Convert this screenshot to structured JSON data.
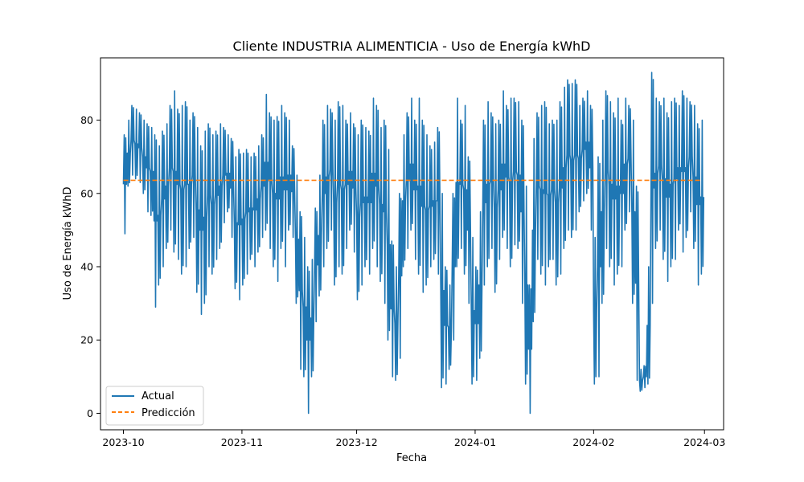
{
  "chart_data": {
    "type": "line",
    "title": "Cliente INDUSTRIA ALIMENTICIA - Uso de Energía kWhD",
    "xlabel": "Fecha",
    "ylabel": "Uso de Energía kWhD",
    "x_range": [
      "2023-10-01",
      "2024-02-29"
    ],
    "xlim": [
      "2023-09-25",
      "2024-03-06"
    ],
    "ylim": [
      -4.5,
      97
    ],
    "x_ticks": [
      "2023-10",
      "2023-11",
      "2023-12",
      "2024-01",
      "2024-02",
      "2024-03"
    ],
    "x_tick_dates": [
      "2023-10-01",
      "2023-11-01",
      "2023-12-01",
      "2024-01-01",
      "2024-02-01",
      "2024-03-01"
    ],
    "y_ticks": [
      0,
      20,
      40,
      60,
      80
    ],
    "legend_position": "lower-left",
    "grid": false,
    "series": [
      {
        "name": "Actual",
        "style": "solid",
        "color": "#1f77b4",
        "sampling": "daily, approximate envelope of the hourly signal",
        "points": [
          [
            "2023-10-01",
            49,
            76
          ],
          [
            "2023-10-02",
            62,
            80
          ],
          [
            "2023-10-03",
            65,
            84
          ],
          [
            "2023-10-04",
            64,
            83
          ],
          [
            "2023-10-05",
            63,
            82
          ],
          [
            "2023-10-06",
            60,
            80
          ],
          [
            "2023-10-07",
            55,
            79
          ],
          [
            "2023-10-08",
            54,
            78
          ],
          [
            "2023-10-09",
            29,
            76
          ],
          [
            "2023-10-10",
            35,
            73
          ],
          [
            "2023-10-11",
            40,
            77
          ],
          [
            "2023-10-12",
            45,
            79
          ],
          [
            "2023-10-13",
            50,
            84
          ],
          [
            "2023-10-14",
            44,
            88
          ],
          [
            "2023-10-15",
            42,
            83
          ],
          [
            "2023-10-16",
            38,
            84
          ],
          [
            "2023-10-17",
            40,
            85
          ],
          [
            "2023-10-18",
            45,
            80
          ],
          [
            "2023-10-19",
            48,
            82
          ],
          [
            "2023-10-20",
            33,
            78
          ],
          [
            "2023-10-21",
            27,
            73
          ],
          [
            "2023-10-22",
            30,
            77
          ],
          [
            "2023-10-23",
            40,
            79
          ],
          [
            "2023-10-24",
            38,
            76
          ],
          [
            "2023-10-25",
            42,
            77
          ],
          [
            "2023-10-26",
            45,
            79
          ],
          [
            "2023-10-27",
            52,
            78
          ],
          [
            "2023-10-28",
            55,
            76
          ],
          [
            "2023-10-29",
            48,
            75
          ],
          [
            "2023-10-30",
            34,
            70
          ],
          [
            "2023-10-31",
            31,
            72
          ],
          [
            "2023-11-01",
            35,
            71
          ],
          [
            "2023-11-02",
            38,
            72
          ],
          [
            "2023-11-03",
            42,
            70
          ],
          [
            "2023-11-04",
            40,
            71
          ],
          [
            "2023-11-05",
            44,
            73
          ],
          [
            "2023-11-06",
            48,
            76
          ],
          [
            "2023-11-07",
            50,
            87
          ],
          [
            "2023-11-08",
            45,
            82
          ],
          [
            "2023-11-09",
            40,
            80
          ],
          [
            "2023-11-10",
            36,
            81
          ],
          [
            "2023-11-11",
            45,
            84
          ],
          [
            "2023-11-12",
            40,
            82
          ],
          [
            "2023-11-13",
            50,
            80
          ],
          [
            "2023-11-14",
            48,
            73
          ],
          [
            "2023-11-15",
            30,
            65
          ],
          [
            "2023-11-16",
            12,
            55
          ],
          [
            "2023-11-17",
            10,
            48
          ],
          [
            "2023-11-18",
            0,
            40
          ],
          [
            "2023-11-19",
            10,
            42
          ],
          [
            "2023-11-20",
            25,
            56
          ],
          [
            "2023-11-21",
            32,
            65
          ],
          [
            "2023-11-22",
            40,
            80
          ],
          [
            "2023-11-23",
            45,
            84
          ],
          [
            "2023-11-24",
            50,
            83
          ],
          [
            "2023-11-25",
            35,
            80
          ],
          [
            "2023-11-26",
            40,
            85
          ],
          [
            "2023-11-27",
            38,
            84
          ],
          [
            "2023-11-28",
            45,
            80
          ],
          [
            "2023-11-29",
            50,
            82
          ],
          [
            "2023-11-30",
            44,
            79
          ],
          [
            "2023-12-01",
            31,
            76
          ],
          [
            "2023-12-02",
            35,
            80
          ],
          [
            "2023-12-03",
            40,
            78
          ],
          [
            "2023-12-04",
            38,
            77
          ],
          [
            "2023-12-05",
            45,
            86
          ],
          [
            "2023-12-06",
            40,
            84
          ],
          [
            "2023-12-07",
            36,
            78
          ],
          [
            "2023-12-08",
            30,
            80
          ],
          [
            "2023-12-09",
            20,
            72
          ],
          [
            "2023-12-10",
            10,
            47
          ],
          [
            "2023-12-11",
            9,
            40
          ],
          [
            "2023-12-12",
            15,
            60
          ],
          [
            "2023-12-13",
            40,
            76
          ],
          [
            "2023-12-14",
            45,
            82
          ],
          [
            "2023-12-15",
            50,
            86
          ],
          [
            "2023-12-16",
            42,
            80
          ],
          [
            "2023-12-17",
            38,
            86
          ],
          [
            "2023-12-18",
            33,
            80
          ],
          [
            "2023-12-19",
            35,
            76
          ],
          [
            "2023-12-20",
            40,
            73
          ],
          [
            "2023-12-21",
            42,
            74
          ],
          [
            "2023-12-22",
            38,
            78
          ],
          [
            "2023-12-23",
            7,
            60
          ],
          [
            "2023-12-24",
            8,
            40
          ],
          [
            "2023-12-25",
            12,
            35
          ],
          [
            "2023-12-26",
            20,
            60
          ],
          [
            "2023-12-27",
            40,
            86
          ],
          [
            "2023-12-28",
            45,
            80
          ],
          [
            "2023-12-29",
            38,
            84
          ],
          [
            "2023-12-30",
            30,
            70
          ],
          [
            "2023-12-31",
            8,
            48
          ],
          [
            "2024-01-01",
            9,
            40
          ],
          [
            "2024-01-02",
            15,
            55
          ],
          [
            "2024-01-03",
            35,
            80
          ],
          [
            "2024-01-04",
            40,
            85
          ],
          [
            "2024-01-05",
            45,
            82
          ],
          [
            "2024-01-06",
            33,
            79
          ],
          [
            "2024-01-07",
            42,
            80
          ],
          [
            "2024-01-08",
            48,
            88
          ],
          [
            "2024-01-09",
            45,
            84
          ],
          [
            "2024-01-10",
            40,
            86
          ],
          [
            "2024-01-11",
            46,
            86
          ],
          [
            "2024-01-12",
            45,
            85
          ],
          [
            "2024-01-13",
            30,
            80
          ],
          [
            "2024-01-14",
            8,
            62
          ],
          [
            "2024-01-15",
            0,
            35
          ],
          [
            "2024-01-16",
            25,
            75
          ],
          [
            "2024-01-17",
            42,
            82
          ],
          [
            "2024-01-18",
            38,
            84
          ],
          [
            "2024-01-19",
            35,
            85
          ],
          [
            "2024-01-20",
            40,
            79
          ],
          [
            "2024-01-21",
            42,
            80
          ],
          [
            "2024-01-22",
            35,
            80
          ],
          [
            "2024-01-23",
            38,
            85
          ],
          [
            "2024-01-24",
            45,
            89
          ],
          [
            "2024-01-25",
            50,
            91
          ],
          [
            "2024-01-26",
            48,
            90
          ],
          [
            "2024-01-27",
            50,
            91
          ],
          [
            "2024-01-28",
            55,
            84
          ],
          [
            "2024-01-29",
            58,
            86
          ],
          [
            "2024-01-30",
            60,
            88
          ],
          [
            "2024-01-31",
            50,
            84
          ],
          [
            "2024-02-01",
            8,
            48
          ],
          [
            "2024-02-02",
            10,
            70
          ],
          [
            "2024-02-03",
            30,
            80
          ],
          [
            "2024-02-04",
            45,
            88
          ],
          [
            "2024-02-05",
            40,
            85
          ],
          [
            "2024-02-06",
            35,
            82
          ],
          [
            "2024-02-07",
            38,
            86
          ],
          [
            "2024-02-08",
            40,
            80
          ],
          [
            "2024-02-09",
            50,
            86
          ],
          [
            "2024-02-10",
            55,
            84
          ],
          [
            "2024-02-11",
            30,
            80
          ],
          [
            "2024-02-12",
            9,
            62
          ],
          [
            "2024-02-13",
            6,
            12
          ],
          [
            "2024-02-14",
            7,
            13
          ],
          [
            "2024-02-15",
            8,
            40
          ],
          [
            "2024-02-16",
            30,
            93
          ],
          [
            "2024-02-17",
            45,
            86
          ],
          [
            "2024-02-18",
            50,
            85
          ],
          [
            "2024-02-19",
            42,
            86
          ],
          [
            "2024-02-20",
            36,
            82
          ],
          [
            "2024-02-21",
            40,
            85
          ],
          [
            "2024-02-22",
            42,
            86
          ],
          [
            "2024-02-23",
            50,
            84
          ],
          [
            "2024-02-24",
            44,
            88
          ],
          [
            "2024-02-25",
            48,
            86
          ],
          [
            "2024-02-26",
            55,
            85
          ],
          [
            "2024-02-27",
            45,
            84
          ],
          [
            "2024-02-28",
            35,
            79
          ],
          [
            "2024-02-29",
            38,
            80
          ]
        ]
      },
      {
        "name": "Predicción",
        "style": "dashed",
        "color": "#ff7f0e",
        "x": [
          "2023-10-01",
          "2024-02-29"
        ],
        "y": [
          63.6,
          63.6
        ]
      }
    ]
  }
}
